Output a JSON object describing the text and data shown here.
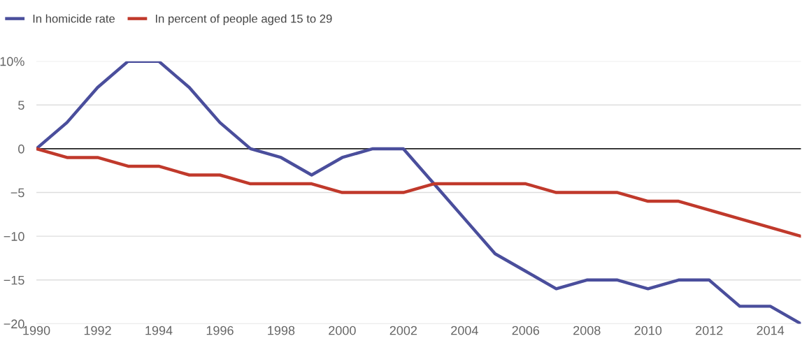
{
  "chart_data": {
    "type": "line",
    "x": [
      1990,
      1991,
      1992,
      1993,
      1994,
      1995,
      1996,
      1997,
      1998,
      1999,
      2000,
      2001,
      2002,
      2003,
      2004,
      2005,
      2006,
      2007,
      2008,
      2009,
      2010,
      2011,
      2012,
      2013,
      2014,
      2015
    ],
    "series": [
      {
        "name": "In homicide rate",
        "color": "#4a4e9c",
        "values": [
          0,
          3,
          7,
          10,
          10,
          7,
          3,
          0,
          -1,
          -3,
          -1,
          0,
          0,
          -4,
          -8,
          -12,
          -14,
          -16,
          -15,
          -15,
          -16,
          -15,
          -15,
          -18,
          -18,
          -20
        ]
      },
      {
        "name": "In percent of people aged 15 to 29",
        "color": "#c0392b",
        "values": [
          0,
          -1,
          -1,
          -2,
          -2,
          -3,
          -3,
          -4,
          -4,
          -4,
          -5,
          -5,
          -5,
          -4,
          -4,
          -4,
          -4,
          -5,
          -5,
          -5,
          -6,
          -6,
          -7,
          -8,
          -9,
          -10
        ]
      }
    ],
    "xlim": [
      1990,
      2015
    ],
    "xticks": [
      1990,
      1992,
      1994,
      1996,
      1998,
      2000,
      2002,
      2004,
      2006,
      2008,
      2010,
      2012,
      2014
    ],
    "ylim": [
      -20,
      10
    ],
    "yticks": [
      {
        "value": -20,
        "label": "−20"
      },
      {
        "value": -15,
        "label": "−15"
      },
      {
        "value": -10,
        "label": "−10"
      },
      {
        "value": -5,
        "label": "−5"
      },
      0,
      5,
      {
        "value": 10,
        "label": "10%"
      }
    ],
    "ref_lines": [
      {
        "axis": "y",
        "value": 0,
        "color": "#222222"
      }
    ],
    "grid": "y",
    "legend": "top left",
    "marker": "none",
    "line_style": "solid"
  }
}
